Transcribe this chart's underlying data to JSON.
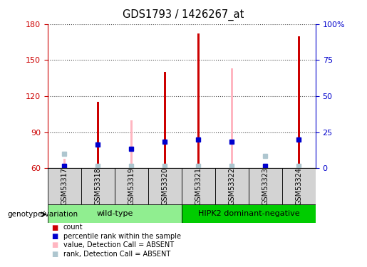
{
  "title": "GDS1793 / 1426267_at",
  "samples": [
    "GSM53317",
    "GSM53318",
    "GSM53319",
    "GSM53320",
    "GSM53321",
    "GSM53322",
    "GSM53323",
    "GSM53324"
  ],
  "groups": [
    {
      "label": "wild-type",
      "color": "#90ee90",
      "samples": [
        0,
        1,
        2,
        3
      ]
    },
    {
      "label": "HIPK2 dominant-negative",
      "color": "#00cc00",
      "samples": [
        4,
        5,
        6,
        7
      ]
    }
  ],
  "red_bar_values": [
    62,
    115,
    62,
    140,
    172,
    62,
    62,
    170
  ],
  "pink_bar_values": [
    68,
    62,
    100,
    62,
    62,
    143,
    62,
    62
  ],
  "blue_sq_values": [
    62,
    80,
    76,
    82,
    84,
    82,
    62,
    84
  ],
  "lblue_sq_values": [
    72,
    62,
    62,
    62,
    62,
    62,
    70,
    62
  ],
  "ylim_left": [
    60,
    180
  ],
  "ylim_right": [
    0,
    100
  ],
  "left_yticks": [
    60,
    90,
    120,
    150,
    180
  ],
  "right_yticks": [
    0,
    25,
    50,
    75,
    100
  ],
  "left_ycolor": "#cc0000",
  "right_ycolor": "#0000cc",
  "red_color": "#cc0000",
  "pink_color": "#ffb6c1",
  "blue_color": "#0000cd",
  "lblue_color": "#aec6cf",
  "bg_color": "#ffffff",
  "legend_items": [
    {
      "label": "count",
      "color": "#cc0000"
    },
    {
      "label": "percentile rank within the sample",
      "color": "#0000cd"
    },
    {
      "label": "value, Detection Call = ABSENT",
      "color": "#ffb6c1"
    },
    {
      "label": "rank, Detection Call = ABSENT",
      "color": "#aec6cf"
    }
  ],
  "genotype_label": "genotype/variation",
  "grid_color": "#000000",
  "grid_alpha": 0.7,
  "red_bar_width": 0.06,
  "pink_bar_width": 0.08,
  "baseline": 60
}
